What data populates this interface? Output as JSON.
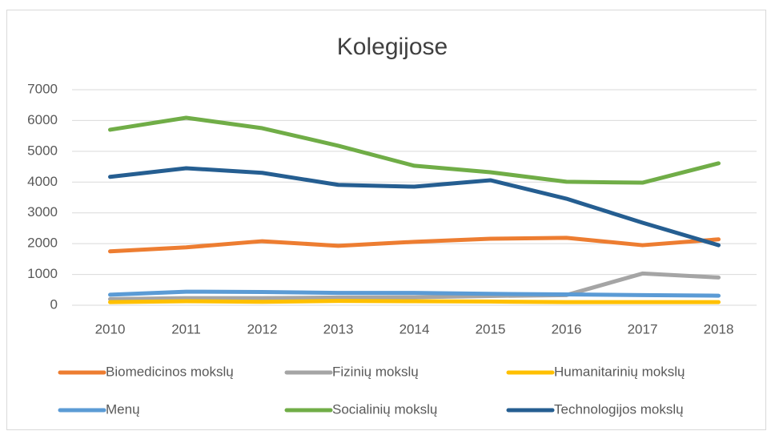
{
  "chart_data": {
    "type": "line",
    "title": "Kolegijose",
    "categories": [
      "2010",
      "2011",
      "2012",
      "2013",
      "2014",
      "2015",
      "2016",
      "2017",
      "2018"
    ],
    "series": [
      {
        "name": "Biomedicinos mokslų",
        "color": "#ed7d31",
        "values": [
          1750,
          1880,
          2080,
          1930,
          2060,
          2160,
          2190,
          1950,
          2140
        ]
      },
      {
        "name": "Fizinių mokslų",
        "color": "#a5a5a5",
        "values": [
          200,
          230,
          230,
          250,
          260,
          300,
          330,
          1030,
          900
        ]
      },
      {
        "name": "Humanitarinių mokslų",
        "color": "#ffc000",
        "values": [
          100,
          130,
          110,
          140,
          130,
          120,
          100,
          100,
          100
        ]
      },
      {
        "name": "Menų",
        "color": "#5b9bd5",
        "values": [
          340,
          440,
          430,
          400,
          400,
          370,
          350,
          330,
          310
        ]
      },
      {
        "name": "Socialinių mokslų",
        "color": "#70ad47",
        "values": [
          5700,
          6090,
          5750,
          5180,
          4530,
          4320,
          4010,
          3980,
          4610
        ]
      },
      {
        "name": "Technologijos mokslų",
        "color": "#255e91",
        "values": [
          4170,
          4450,
          4300,
          3910,
          3850,
          4060,
          3460,
          2680,
          1950
        ]
      }
    ],
    "ylim": [
      0,
      7000
    ],
    "yticks": [
      0,
      1000,
      2000,
      3000,
      4000,
      5000,
      6000,
      7000
    ],
    "grid": true,
    "legend": "bottom"
  }
}
